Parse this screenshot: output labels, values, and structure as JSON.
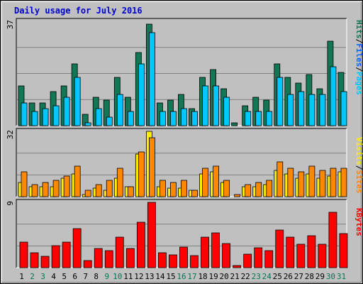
{
  "title": "Daily usage for July 2016",
  "colors": {
    "background": "#c0c0c0",
    "panel": "#c0c0c0",
    "title": "#0000cc",
    "hits": "#117755",
    "files": "#00c8ff",
    "visits": "#ffee00",
    "sites": "#ff8800",
    "kbytes": "#ff0000",
    "weekday_label": "#000000",
    "weekend_label": "#007755",
    "gridline": "#808080"
  },
  "legend_sep": "/",
  "chart_data": [
    {
      "type": "bar",
      "panel": "pages-files-hits",
      "scale_label": "37",
      "ymax": 37,
      "legend": [
        "Pages",
        "Files",
        "Hits"
      ],
      "categories": [
        "1",
        "2",
        "3",
        "4",
        "5",
        "6",
        "7",
        "8",
        "9",
        "10",
        "11",
        "12",
        "13",
        "14",
        "15",
        "16",
        "17",
        "18",
        "19",
        "20",
        "21",
        "22",
        "23",
        "24",
        "25",
        "26",
        "27",
        "28",
        "29",
        "30",
        "31"
      ],
      "series": [
        {
          "name": "Hits",
          "color": "#117755",
          "values": [
            14,
            8,
            8,
            12,
            14,
            22,
            4,
            10,
            9,
            17,
            10,
            26,
            36,
            8,
            9,
            11,
            6,
            17,
            20,
            13,
            1,
            7,
            10,
            9,
            22,
            17,
            15,
            18,
            13,
            30,
            19
          ]
        },
        {
          "name": "Files",
          "color": "#00c8ff",
          "values": [
            8,
            5,
            6,
            7,
            10,
            17,
            1,
            6,
            3,
            11,
            5,
            22,
            33,
            5,
            5,
            6,
            5,
            14,
            14,
            10,
            0,
            5,
            5,
            5,
            17,
            11,
            12,
            11,
            11,
            21,
            12
          ]
        }
      ]
    },
    {
      "type": "bar",
      "panel": "visits-sites",
      "scale_label": "32",
      "ymax": 32,
      "legend": [
        "Sites",
        "Visits"
      ],
      "categories": [
        "1",
        "2",
        "3",
        "4",
        "5",
        "6",
        "7",
        "8",
        "9",
        "10",
        "11",
        "12",
        "13",
        "14",
        "15",
        "16",
        "17",
        "18",
        "19",
        "20",
        "21",
        "22",
        "23",
        "24",
        "25",
        "26",
        "27",
        "28",
        "29",
        "30",
        "31"
      ],
      "series": [
        {
          "name": "Visits",
          "color": "#ffee00",
          "values": [
            7,
            5,
            5,
            5,
            9,
            11,
            1,
            4,
            3,
            9,
            5,
            21,
            32,
            5,
            4,
            4,
            3,
            11,
            12,
            7,
            0,
            5,
            5,
            6,
            13,
            11,
            9,
            11,
            9,
            10,
            12
          ]
        },
        {
          "name": "Sites",
          "color": "#ff8800",
          "values": [
            12,
            6,
            7,
            8,
            10,
            15,
            3,
            6,
            8,
            14,
            5,
            22,
            29,
            8,
            7,
            8,
            3,
            14,
            15,
            8,
            1,
            6,
            7,
            8,
            17,
            14,
            12,
            15,
            13,
            14,
            14
          ]
        }
      ]
    },
    {
      "type": "bar",
      "panel": "kbytes",
      "scale_label": "9",
      "ymax": 9,
      "legend": [
        "KBytes"
      ],
      "categories": [
        "1",
        "2",
        "3",
        "4",
        "5",
        "6",
        "7",
        "8",
        "9",
        "10",
        "11",
        "12",
        "13",
        "14",
        "15",
        "16",
        "17",
        "18",
        "19",
        "20",
        "21",
        "22",
        "23",
        "24",
        "25",
        "26",
        "27",
        "28",
        "29",
        "30",
        "31"
      ],
      "series": [
        {
          "name": "KBytes",
          "color": "#ff0000",
          "values": [
            3.5,
            2.1,
            1.6,
            3.0,
            3.5,
            5.4,
            1.0,
            2.6,
            2.3,
            4.2,
            2.6,
            6.3,
            9.0,
            2.1,
            1.8,
            2.8,
            1.7,
            4.2,
            4.8,
            3.3,
            0.3,
            1.9,
            2.7,
            2.3,
            5.2,
            4.2,
            3.2,
            4.4,
            3.2,
            7.6,
            4.7
          ]
        }
      ]
    }
  ],
  "days": [
    {
      "label": "1",
      "weekend": false
    },
    {
      "label": "2",
      "weekend": true
    },
    {
      "label": "3",
      "weekend": true
    },
    {
      "label": "4",
      "weekend": false
    },
    {
      "label": "5",
      "weekend": false
    },
    {
      "label": "6",
      "weekend": false
    },
    {
      "label": "7",
      "weekend": false
    },
    {
      "label": "8",
      "weekend": false
    },
    {
      "label": "9",
      "weekend": true
    },
    {
      "label": "10",
      "weekend": true
    },
    {
      "label": "11",
      "weekend": false
    },
    {
      "label": "12",
      "weekend": false
    },
    {
      "label": "13",
      "weekend": false
    },
    {
      "label": "14",
      "weekend": false
    },
    {
      "label": "15",
      "weekend": false
    },
    {
      "label": "16",
      "weekend": true
    },
    {
      "label": "17",
      "weekend": true
    },
    {
      "label": "18",
      "weekend": false
    },
    {
      "label": "19",
      "weekend": false
    },
    {
      "label": "20",
      "weekend": false
    },
    {
      "label": "21",
      "weekend": false
    },
    {
      "label": "22",
      "weekend": false
    },
    {
      "label": "23",
      "weekend": true
    },
    {
      "label": "24",
      "weekend": true
    },
    {
      "label": "25",
      "weekend": false
    },
    {
      "label": "26",
      "weekend": false
    },
    {
      "label": "27",
      "weekend": false
    },
    {
      "label": "28",
      "weekend": false
    },
    {
      "label": "29",
      "weekend": false
    },
    {
      "label": "30",
      "weekend": true
    },
    {
      "label": "31",
      "weekend": true
    }
  ]
}
